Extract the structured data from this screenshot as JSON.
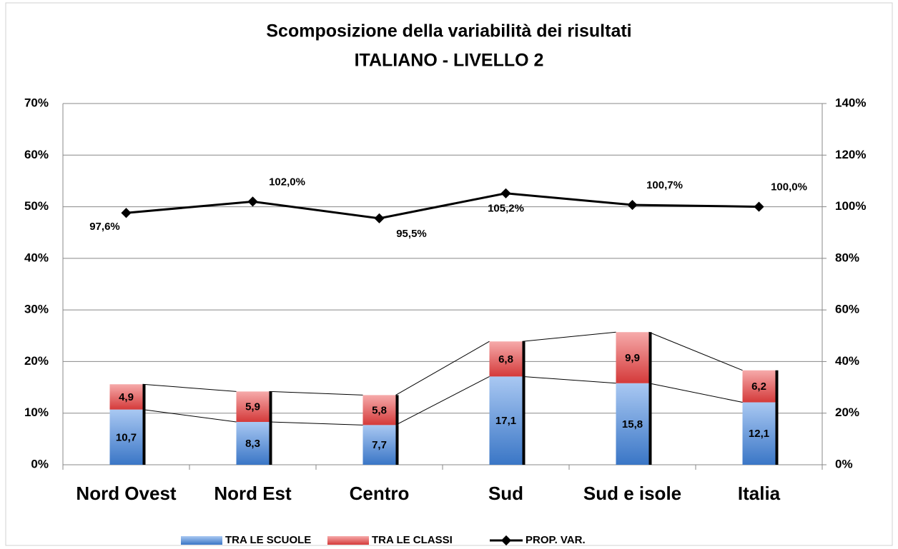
{
  "chart_data": {
    "type": "bar",
    "title": "Scomposizione della variabilità dei risultati",
    "subtitle": "ITALIANO - LIVELLO 2",
    "categories": [
      "Nord Ovest",
      "Nord Est",
      "Centro",
      "Sud",
      "Sud e isole",
      "Italia"
    ],
    "stacked": true,
    "series": [
      {
        "name": "TRA LE SCUOLE",
        "color": "#4f88d8",
        "values": [
          10.7,
          8.3,
          7.7,
          17.1,
          15.8,
          12.1
        ],
        "value_labels": [
          "10,7",
          "8,3",
          "7,7",
          "17,1",
          "15,8",
          "12,1"
        ]
      },
      {
        "name": "TRA LE CLASSI",
        "color": "#e05555",
        "values": [
          4.9,
          5.9,
          5.8,
          6.8,
          9.9,
          6.2
        ],
        "value_labels": [
          "4,9",
          "5,9",
          "5,8",
          "6,8",
          "9,9",
          "6,2"
        ]
      },
      {
        "name": "PROP. VAR.",
        "color": "#000000",
        "type": "line",
        "axis": "y2",
        "values": [
          97.6,
          102.0,
          95.5,
          105.2,
          100.7,
          100.0
        ],
        "value_labels": [
          "97,6%",
          "102,0%",
          "95,5%",
          "105,2%",
          "100,7%",
          "100,0%"
        ]
      }
    ],
    "ylim": [
      0,
      70
    ],
    "yticks": [
      {
        "value": 0,
        "label": "0%"
      },
      {
        "value": 10,
        "label": "10%"
      },
      {
        "value": 20,
        "label": "20%"
      },
      {
        "value": 30,
        "label": "30%"
      },
      {
        "value": 40,
        "label": "40%"
      },
      {
        "value": 50,
        "label": "50%"
      },
      {
        "value": 60,
        "label": "60%"
      },
      {
        "value": 70,
        "label": "70%"
      }
    ],
    "y2lim": [
      0,
      140
    ],
    "y2ticks": [
      {
        "value": 0,
        "label": "0%"
      },
      {
        "value": 20,
        "label": "20%"
      },
      {
        "value": 40,
        "label": "40%"
      },
      {
        "value": 60,
        "label": "60%"
      },
      {
        "value": 80,
        "label": "80%"
      },
      {
        "value": 100,
        "label": "100%"
      },
      {
        "value": 120,
        "label": "120%"
      },
      {
        "value": 140,
        "label": "140%"
      }
    ],
    "grid": true,
    "legend": "bottom"
  }
}
